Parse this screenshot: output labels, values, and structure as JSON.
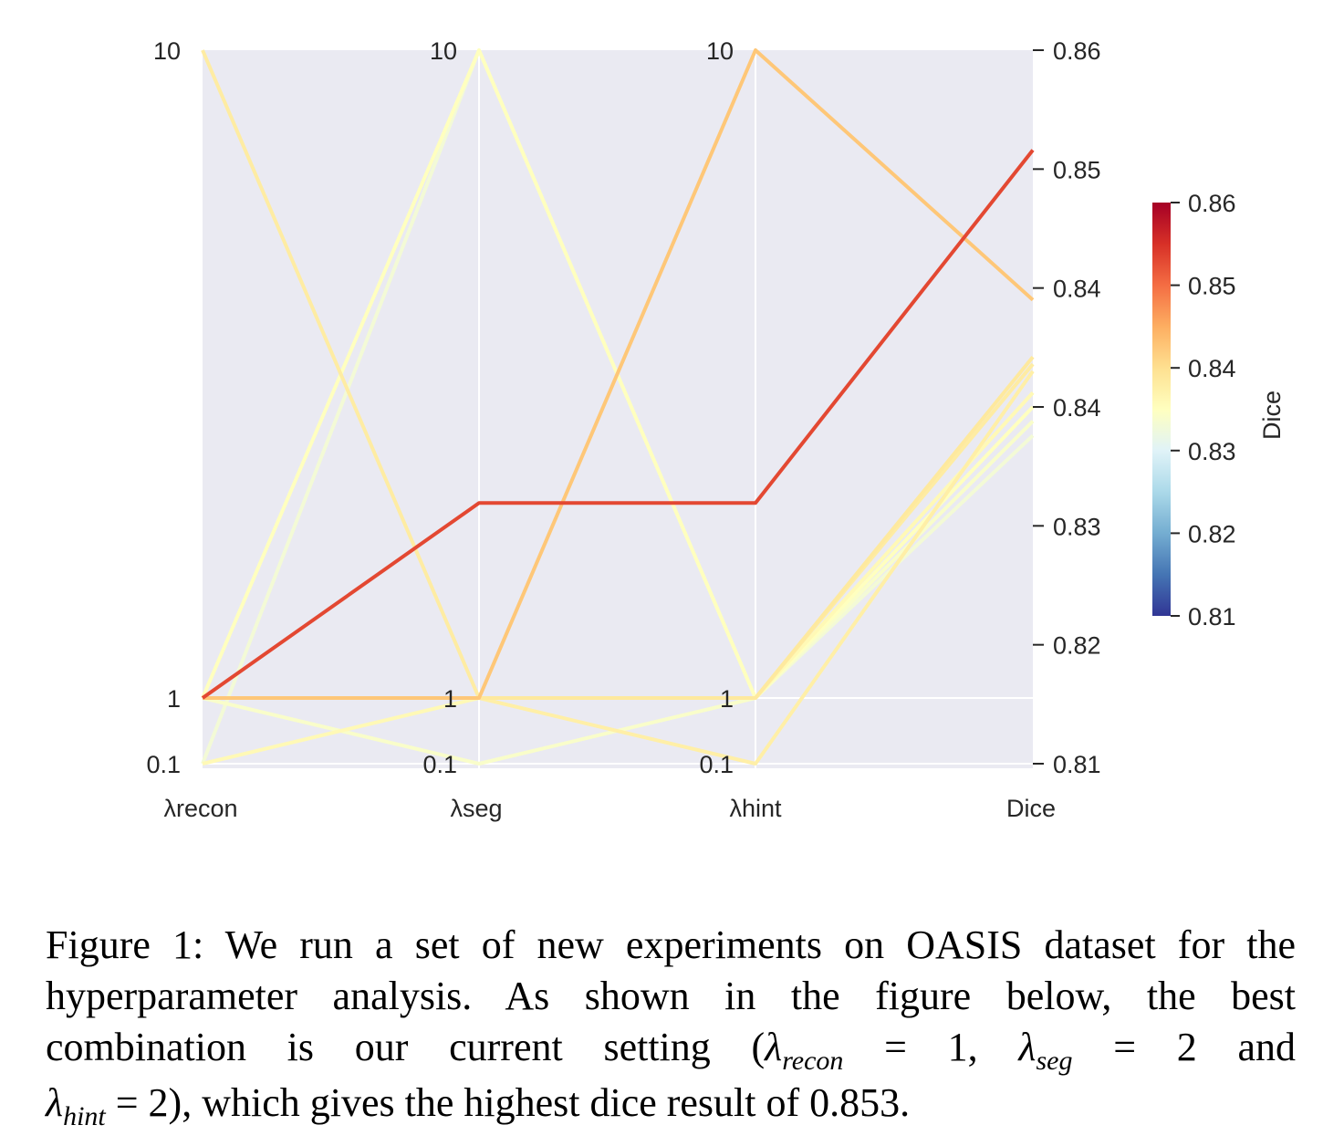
{
  "chart_data": {
    "type": "parallel_coordinates",
    "axes": [
      {
        "name": "λrecon",
        "tick_labels": [
          "10",
          "1",
          "0.1"
        ]
      },
      {
        "name": "λseg",
        "tick_labels": [
          "10",
          "1",
          "0.1"
        ]
      },
      {
        "name": "λhint",
        "tick_labels": [
          "10",
          "1",
          "0.1"
        ]
      },
      {
        "name": "Dice",
        "tick_labels": [
          "0.86",
          "0.85",
          "0.84",
          "0.84",
          "0.83",
          "0.82",
          "0.81"
        ],
        "range": [
          0.81,
          0.86
        ]
      }
    ],
    "series": [
      {
        "lambda_recon": 10,
        "lambda_seg": 1,
        "lambda_hint": 1,
        "dice": 0.838
      },
      {
        "lambda_recon": 1,
        "lambda_seg": 10,
        "lambda_hint": 1,
        "dice": 0.835
      },
      {
        "lambda_recon": 1,
        "lambda_seg": 1,
        "lambda_hint": 10,
        "dice": 0.8425
      },
      {
        "lambda_recon": 1,
        "lambda_seg": 2,
        "lambda_hint": 2,
        "dice": 0.853
      },
      {
        "lambda_recon": 1,
        "lambda_seg": 1,
        "lambda_hint": 1,
        "dice": 0.8385
      },
      {
        "lambda_recon": 1,
        "lambda_seg": 1,
        "lambda_hint": 0.1,
        "dice": 0.8375
      },
      {
        "lambda_recon": 0.1,
        "lambda_seg": 1,
        "lambda_hint": 1,
        "dice": 0.836
      },
      {
        "lambda_recon": 1,
        "lambda_seg": 0.1,
        "lambda_hint": 1,
        "dice": 0.834
      },
      {
        "lambda_recon": 0.1,
        "lambda_seg": 10,
        "lambda_hint": 1,
        "dice": 0.833
      }
    ],
    "colorbar": {
      "label": "Dice",
      "tick_labels": [
        "0.86",
        "0.85",
        "0.84",
        "0.83",
        "0.82",
        "0.81"
      ],
      "range": [
        0.81,
        0.86
      ],
      "colormap": [
        "#313695",
        "#4575b4",
        "#74add1",
        "#abd9e9",
        "#e0f3f8",
        "#ffffbf",
        "#fee090",
        "#fdae61",
        "#f46d43",
        "#d73027",
        "#a50026"
      ]
    },
    "background_color": "#eaeaf2",
    "grid": true
  },
  "caption": {
    "line1": "Figure 1: We run a set of new experiments on OASIS dataset for the",
    "line2": "hyperparameter analysis. As shown in the figure below, the best",
    "line3_a": "combination is our current setting (",
    "lambda": "λ",
    "recon": "recon",
    "seg": "seg",
    "hint": "hint",
    "eq1": " = 1, ",
    "eq2": " = 2 and",
    "eq3": " = 2), which gives the highest dice result of 0.853."
  }
}
